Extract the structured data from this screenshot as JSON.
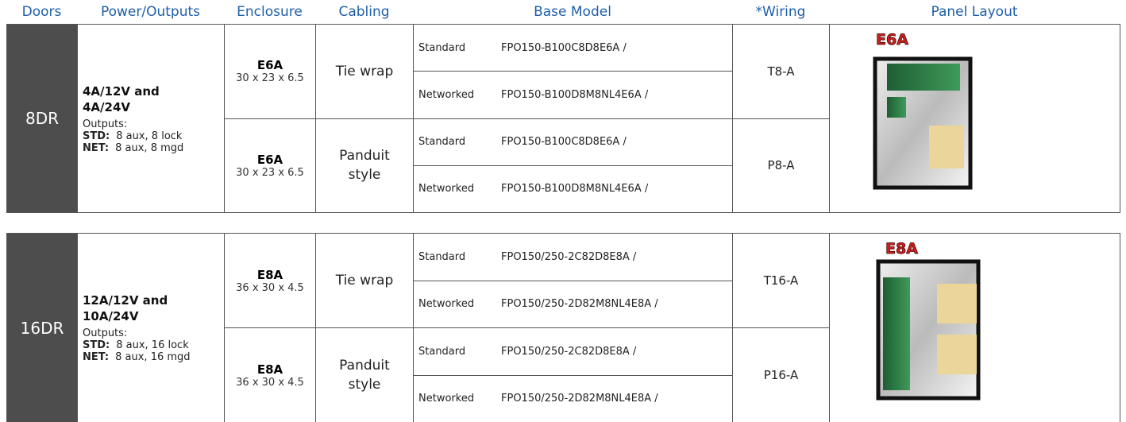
{
  "header": {
    "columns": [
      "Doors",
      "Power/Outputs",
      "Enclosure",
      "Cabling",
      "Base Model",
      "*Wiring",
      "Panel Layout"
    ]
  },
  "blocks": [
    {
      "doors": "8DR",
      "power": "4A/12V and 4A/24V",
      "outputs_label": "Outputs:",
      "outputs": [
        {
          "label": "STD:",
          "text": "8 aux, 8 lock"
        },
        {
          "label": "NET:",
          "text": "8 aux, 8 mgd"
        }
      ],
      "panel": "E6A",
      "groups": [
        {
          "enclosure": "E6A",
          "dims": "30 x 23 x 6.5",
          "cabling": "Tie wrap",
          "wiring": "T8-A",
          "models": [
            {
              "kind": "Standard",
              "model": "FPO150-B100C8D8E6A /"
            },
            {
              "kind": "Networked",
              "model": "FPO150-B100D8M8NL4E6A /"
            }
          ]
        },
        {
          "enclosure": "E6A",
          "dims": "30 x 23 x 6.5",
          "cabling": "Panduit style",
          "wiring": "P8-A",
          "models": [
            {
              "kind": "Standard",
              "model": "FPO150-B100C8D8E6A /"
            },
            {
              "kind": "Networked",
              "model": "FPO150-B100D8M8NL4E6A /"
            }
          ]
        }
      ]
    },
    {
      "doors": "16DR",
      "power": "12A/12V and 10A/24V",
      "outputs_label": "Outputs:",
      "outputs": [
        {
          "label": "STD:",
          "text": "8 aux, 16 lock"
        },
        {
          "label": "NET:",
          "text": "8 aux, 16 mgd"
        }
      ],
      "panel": "E8A",
      "groups": [
        {
          "enclosure": "E8A",
          "dims": "36 x 30 x 4.5",
          "cabling": "Tie wrap",
          "wiring": "T16-A",
          "models": [
            {
              "kind": "Standard",
              "model": "FPO150/250-2C82D8E8A /"
            },
            {
              "kind": "Networked",
              "model": "FPO150/250-2D82M8NL4E8A /"
            }
          ]
        },
        {
          "enclosure": "E8A",
          "dims": "36 x 30 x 4.5",
          "cabling": "Panduit style",
          "wiring": "P16-A",
          "models": [
            {
              "kind": "Standard",
              "model": "FPO150/250-2C82D8E8A /"
            },
            {
              "kind": "Networked",
              "model": "FPO150/250-2D82M8NL4E8A /"
            }
          ]
        }
      ]
    }
  ]
}
